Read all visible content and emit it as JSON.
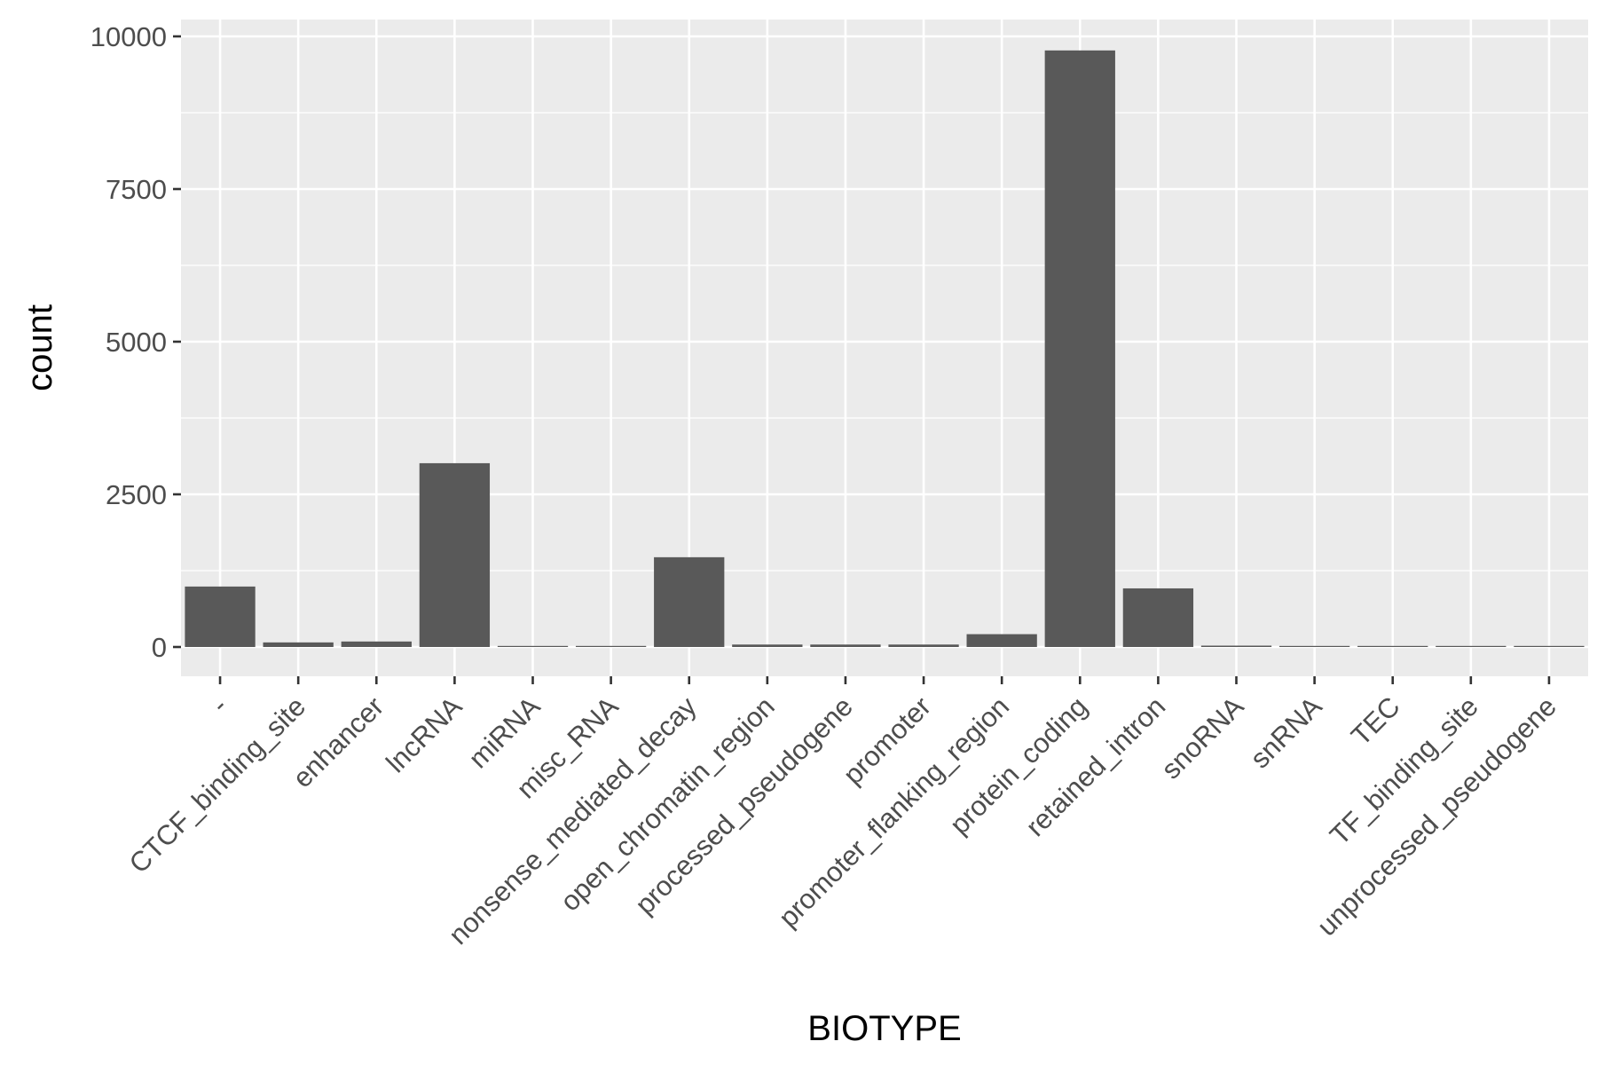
{
  "chart_data": {
    "type": "bar",
    "xlabel": "BIOTYPE",
    "ylabel": "count",
    "categories": [
      "-",
      "CTCF_binding_site",
      "enhancer",
      "lncRNA",
      "miRNA",
      "misc_RNA",
      "nonsense_mediated_decay",
      "open_chromatin_region",
      "processed_pseudogene",
      "promoter",
      "promoter_flanking_region",
      "protein_coding",
      "retained_intron",
      "snoRNA",
      "snRNA",
      "TEC",
      "TF_binding_site",
      "unprocessed_pseudogene"
    ],
    "values": [
      990,
      75,
      90,
      3010,
      8,
      8,
      1470,
      40,
      40,
      40,
      210,
      9770,
      960,
      22,
      6,
      8,
      8,
      8
    ],
    "ylim": [
      -500,
      10300
    ],
    "yticks": [
      0,
      2500,
      5000,
      7500,
      10000
    ],
    "ytick_labels": [
      "0",
      "2500",
      "5000",
      "7500",
      "10000"
    ],
    "grid": true,
    "legend": "none",
    "colors": {
      "panel": "#ebebeb",
      "grid": "#ffffff",
      "bar": "#595959",
      "tick": "#333333",
      "tick_text": "#4d4d4d",
      "axis_title": "#000000"
    }
  }
}
